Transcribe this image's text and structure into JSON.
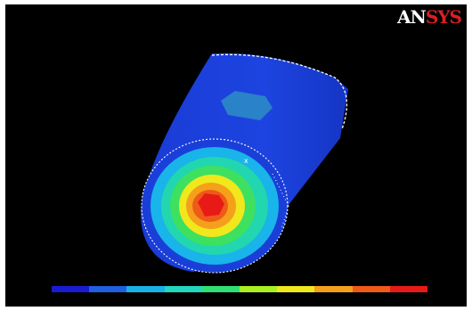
{
  "logo": {
    "text_main": "AN",
    "text_accent": "SYS"
  },
  "colors": {
    "background": "#000000",
    "cylinder_body": "#1b3ed8",
    "legend_bands": [
      "#1a1ad0",
      "#1f5fe0",
      "#19b0e8",
      "#22d6c0",
      "#2fe070",
      "#a8f020",
      "#f0e81c",
      "#f5a01a",
      "#ef5a18",
      "#e81a18"
    ]
  }
}
